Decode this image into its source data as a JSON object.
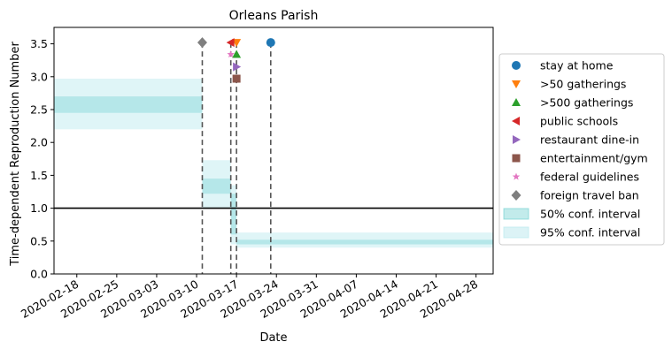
{
  "chart_data": {
    "type": "step",
    "title": "Orleans Parish",
    "xlabel": "Date",
    "ylabel": "Time-dependent Reproduction Number",
    "xlim": [
      "2020-02-14",
      "2020-05-01"
    ],
    "ylim": [
      0,
      3.75
    ],
    "x_ticks": [
      "2020-02-18",
      "2020-02-25",
      "2020-03-03",
      "2020-03-10",
      "2020-03-17",
      "2020-03-24",
      "2020-03-31",
      "2020-04-07",
      "2020-04-14",
      "2020-04-21",
      "2020-04-28"
    ],
    "y_ticks": [
      "0.0",
      "0.5",
      "1.0",
      "1.5",
      "2.0",
      "2.5",
      "3.0",
      "3.5"
    ],
    "y_tick_values": [
      0,
      0.5,
      1.0,
      1.5,
      2.0,
      2.5,
      3.0,
      3.5
    ],
    "reference_line": 1.0,
    "grid": false,
    "legend_position": "right outside",
    "band_50_color": "#66cdcd",
    "band_95_color": "#b9e8ee",
    "segments": [
      {
        "start": "2020-02-14",
        "end": "2020-03-11",
        "ci50": [
          2.45,
          2.7
        ],
        "ci95": [
          2.2,
          2.97
        ]
      },
      {
        "start": "2020-03-11",
        "end": "2020-03-16",
        "ci50": [
          1.22,
          1.45
        ],
        "ci95": [
          1.0,
          1.73
        ]
      },
      {
        "start": "2020-03-16",
        "end": "2020-03-17",
        "ci50": [
          0.6,
          1.22
        ],
        "ci95": [
          0.45,
          1.35
        ]
      },
      {
        "start": "2020-03-17",
        "end": "2020-05-01",
        "ci50": [
          0.45,
          0.52
        ],
        "ci95": [
          0.4,
          0.63
        ]
      }
    ],
    "interventions": [
      {
        "name": "stay at home",
        "date": "2020-03-23",
        "y": 3.52,
        "marker": "circle",
        "color": "#1f77b4"
      },
      {
        "name": ">50 gatherings",
        "date": "2020-03-17",
        "y": 3.52,
        "marker": "triangle-down",
        "color": "#ff7f0e"
      },
      {
        "name": ">500 gatherings",
        "date": "2020-03-17",
        "y": 3.34,
        "marker": "triangle-up",
        "color": "#2ca02c"
      },
      {
        "name": "public schools",
        "date": "2020-03-16",
        "y": 3.52,
        "marker": "triangle-left",
        "color": "#d62728"
      },
      {
        "name": "restaurant dine-in",
        "date": "2020-03-17",
        "y": 3.15,
        "marker": "triangle-right",
        "color": "#9467bd"
      },
      {
        "name": "entertainment/gym",
        "date": "2020-03-17",
        "y": 2.97,
        "marker": "square",
        "color": "#8c564b"
      },
      {
        "name": "federal guidelines",
        "date": "2020-03-16",
        "y": 3.34,
        "marker": "star",
        "color": "#e377c2"
      },
      {
        "name": "foreign travel ban",
        "date": "2020-03-11",
        "y": 3.52,
        "marker": "diamond",
        "color": "#7f7f7f"
      }
    ],
    "vlines": [
      "2020-03-11",
      "2020-03-16",
      "2020-03-17",
      "2020-03-23"
    ],
    "legend": {
      "band_50_label": "50% conf. interval",
      "band_95_label": "95% conf. interval"
    }
  }
}
